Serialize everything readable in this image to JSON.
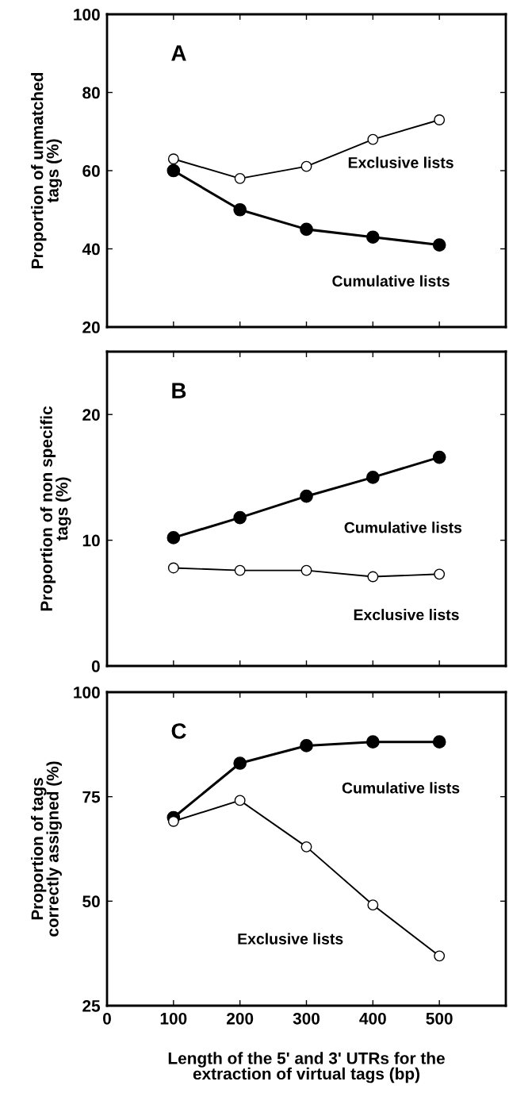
{
  "chart_data": [
    {
      "type": "line",
      "x": [
        100,
        200,
        300,
        400,
        500
      ],
      "ylabel": "Proportion of unmatched\ntags (%)",
      "annotations": [
        "A"
      ],
      "xlim": [
        0,
        600
      ],
      "ylim": [
        20,
        100
      ],
      "xticks": [
        0,
        100,
        200,
        300,
        400,
        500
      ],
      "yticks": [
        20,
        40,
        60,
        80,
        100
      ],
      "tick_labels": "y",
      "grid": false,
      "legend": false,
      "marker": "circle",
      "line_style": "solid",
      "series": [
        {
          "name": "Exclusive lists",
          "color": "#ffffff",
          "values": [
            63,
            58,
            61.1,
            68,
            73
          ]
        },
        {
          "name": "Cumulative lists",
          "color": "#000000",
          "values": [
            60,
            50,
            45,
            43,
            41
          ]
        }
      ]
    },
    {
      "type": "line",
      "x": [
        100,
        200,
        300,
        400,
        500
      ],
      "ylabel": "Proportion of non specific\ntags (%)",
      "annotations": [
        "B"
      ],
      "xlim": [
        0,
        600
      ],
      "ylim": [
        0,
        25
      ],
      "xticks": [
        0,
        100,
        200,
        300,
        400,
        500
      ],
      "yticks": [
        0,
        10,
        20
      ],
      "tick_labels": "y",
      "grid": false,
      "legend": false,
      "marker": "circle",
      "line_style": "solid",
      "series": [
        {
          "name": "Cumulative lists",
          "color": "#000000",
          "values": [
            10.2,
            11.8,
            13.5,
            15.0,
            16.6
          ]
        },
        {
          "name": "Exclusive lists",
          "color": "#ffffff",
          "values": [
            7.8,
            7.6,
            7.6,
            7.1,
            7.3
          ]
        }
      ]
    },
    {
      "type": "line",
      "x": [
        100,
        200,
        300,
        400,
        500
      ],
      "ylabel": "Proportion of tags\ncorrectly assigned (%)",
      "xlabel": "Length of the 5' and 3' UTRs for the\nextraction of virtual tags (bp)",
      "annotations": [
        "C"
      ],
      "xlim": [
        0,
        600
      ],
      "ylim": [
        25,
        100
      ],
      "xticks": [
        0,
        100,
        200,
        300,
        400,
        500
      ],
      "yticks": [
        25,
        50,
        75,
        100
      ],
      "grid": false,
      "legend": false,
      "marker": "circle",
      "line_style": "solid",
      "series": [
        {
          "name": "Cumulative lists",
          "color": "#000000",
          "values": [
            70,
            83,
            87.2,
            88.1,
            88.1
          ]
        },
        {
          "name": "Exclusive lists",
          "color": "#ffffff",
          "values": [
            69.1,
            74.1,
            63,
            49.1,
            36.9
          ]
        }
      ]
    }
  ]
}
